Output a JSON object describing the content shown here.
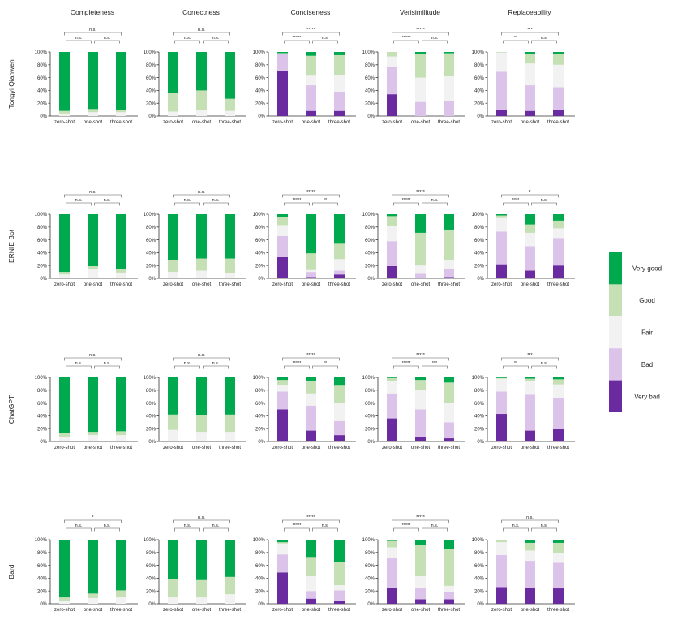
{
  "colors": {
    "very_bad": "#6a2aa0",
    "bad": "#dcc3ea",
    "fair": "#f2f2f2",
    "good": "#c5e0b5",
    "very_good": "#00a84e",
    "axis": "#333333"
  },
  "legend": {
    "placement": "right",
    "labels": [
      "Very good",
      "Good",
      "Fair",
      "Bad",
      "Very bad"
    ]
  },
  "chart_data": {
    "type": "bar",
    "stacked": true,
    "y_axis": {
      "range": [
        0,
        100
      ],
      "ticks": [
        "0%",
        "20%",
        "40%",
        "60%",
        "80%",
        "100%"
      ]
    },
    "categories": [
      "zero-shot",
      "one-shot",
      "three-shot"
    ],
    "columns": [
      "Completeness",
      "Correctness",
      "Conciseness",
      "Verisimilitude",
      "Replaceability"
    ],
    "rows": [
      "Tongyi Qianwen",
      "ERNIE Bot",
      "ChatGPT",
      "Bard"
    ],
    "series_order": [
      "very_bad",
      "bad",
      "fair",
      "good",
      "very_good"
    ],
    "panels": [
      [
        {
          "bars": [
            [
              0,
              0,
              4,
              4,
              92
            ],
            [
              0,
              0,
              6,
              5,
              89
            ],
            [
              0,
              0,
              6,
              4,
              90
            ]
          ],
          "sig": [
            "n.s.",
            "n.s.",
            "n.s."
          ]
        },
        {
          "bars": [
            [
              0,
              0,
              7,
              29,
              64
            ],
            [
              0,
              0,
              10,
              30,
              60
            ],
            [
              0,
              0,
              8,
              19,
              73
            ]
          ],
          "sig": [
            "n.s.",
            "n.s.",
            "n.s."
          ]
        },
        {
          "bars": [
            [
              71,
              26,
              1,
              0,
              2
            ],
            [
              8,
              40,
              15,
              31,
              6
            ],
            [
              8,
              30,
              26,
              31,
              5
            ]
          ],
          "sig": [
            "*****",
            "n.s.",
            "*****"
          ]
        },
        {
          "bars": [
            [
              34,
              43,
              16,
              7,
              0
            ],
            [
              0,
              22,
              38,
              37,
              3
            ],
            [
              0,
              24,
              38,
              36,
              2
            ]
          ],
          "sig": [
            "*****",
            "n.s.",
            "*****"
          ]
        },
        {
          "bars": [
            [
              9,
              60,
              30,
              1,
              0
            ],
            [
              8,
              40,
              34,
              15,
              3
            ],
            [
              9,
              36,
              35,
              17,
              3
            ]
          ],
          "sig": [
            "**",
            "n.s.",
            "***"
          ]
        }
      ],
      [
        {
          "bars": [
            [
              0,
              0,
              6,
              4,
              90
            ],
            [
              0,
              0,
              14,
              5,
              81
            ],
            [
              0,
              0,
              9,
              6,
              85
            ]
          ],
          "sig": [
            "n.s.",
            "n.s.",
            "n.s."
          ]
        },
        {
          "bars": [
            [
              0,
              0,
              10,
              19,
              71
            ],
            [
              0,
              0,
              12,
              19,
              69
            ],
            [
              0,
              0,
              8,
              23,
              69
            ]
          ],
          "sig": [
            "n.s.",
            "n.s.",
            "n.s."
          ]
        },
        {
          "bars": [
            [
              33,
              33,
              17,
              12,
              5
            ],
            [
              2,
              8,
              3,
              26,
              61
            ],
            [
              6,
              6,
              18,
              24,
              46
            ]
          ],
          "sig": [
            "*****",
            "**",
            "*****"
          ]
        },
        {
          "bars": [
            [
              19,
              39,
              24,
              15,
              3
            ],
            [
              0,
              7,
              13,
              51,
              29
            ],
            [
              2,
              12,
              14,
              48,
              24
            ]
          ],
          "sig": [
            "*****",
            "n.s.",
            "*****"
          ]
        },
        {
          "bars": [
            [
              22,
              51,
              21,
              4,
              2
            ],
            [
              12,
              38,
              21,
              13,
              16
            ],
            [
              20,
              43,
              15,
              12,
              10
            ]
          ],
          "sig": [
            "****",
            "n.s.",
            "*"
          ]
        }
      ],
      [
        {
          "bars": [
            [
              0,
              0,
              7,
              6,
              87
            ],
            [
              0,
              0,
              10,
              5,
              85
            ],
            [
              0,
              0,
              10,
              6,
              84
            ]
          ],
          "sig": [
            "n.s.",
            "n.s.",
            "n.s."
          ]
        },
        {
          "bars": [
            [
              0,
              0,
              18,
              24,
              58
            ],
            [
              0,
              0,
              15,
              26,
              59
            ],
            [
              0,
              0,
              15,
              27,
              58
            ]
          ],
          "sig": [
            "n.s.",
            "n.s.",
            "n.s."
          ]
        },
        {
          "bars": [
            [
              50,
              28,
              10,
              8,
              4
            ],
            [
              17,
              39,
              19,
              20,
              5
            ],
            [
              10,
              22,
              28,
              27,
              13
            ]
          ],
          "sig": [
            "*****",
            "**",
            "*****"
          ]
        },
        {
          "bars": [
            [
              36,
              39,
              20,
              4,
              1
            ],
            [
              7,
              43,
              30,
              16,
              4
            ],
            [
              5,
              25,
              30,
              32,
              8
            ]
          ],
          "sig": [
            "*****",
            "***",
            "*****"
          ]
        },
        {
          "bars": [
            [
              43,
              35,
              20,
              1,
              1
            ],
            [
              17,
              56,
              21,
              4,
              2
            ],
            [
              19,
              49,
              21,
              8,
              3
            ]
          ],
          "sig": [
            "**",
            "n.s.",
            "***"
          ]
        }
      ],
      [
        {
          "bars": [
            [
              0,
              0,
              5,
              5,
              90
            ],
            [
              0,
              0,
              9,
              7,
              84
            ],
            [
              0,
              0,
              10,
              11,
              79
            ]
          ],
          "sig": [
            "n.s.",
            "n.s.",
            "*"
          ]
        },
        {
          "bars": [
            [
              0,
              0,
              10,
              28,
              62
            ],
            [
              0,
              0,
              10,
              27,
              63
            ],
            [
              0,
              0,
              15,
              27,
              58
            ]
          ],
          "sig": [
            "n.s.",
            "n.s.",
            "n.s."
          ]
        },
        {
          "bars": [
            [
              49,
              28,
              17,
              2,
              4
            ],
            [
              8,
              12,
              23,
              30,
              27
            ],
            [
              5,
              16,
              8,
              36,
              35
            ]
          ],
          "sig": [
            "*****",
            "n.s.",
            "*****"
          ]
        },
        {
          "bars": [
            [
              25,
              46,
              17,
              10,
              2
            ],
            [
              7,
              17,
              19,
              49,
              8
            ],
            [
              7,
              12,
              9,
              57,
              15
            ]
          ],
          "sig": [
            "*****",
            "n.s.",
            "*****"
          ]
        },
        {
          "bars": [
            [
              26,
              50,
              20,
              3,
              1
            ],
            [
              25,
              42,
              16,
              12,
              5
            ],
            [
              24,
              40,
              15,
              16,
              5
            ]
          ],
          "sig": [
            "n.s.",
            "n.s.",
            "n.s."
          ]
        }
      ]
    ]
  }
}
